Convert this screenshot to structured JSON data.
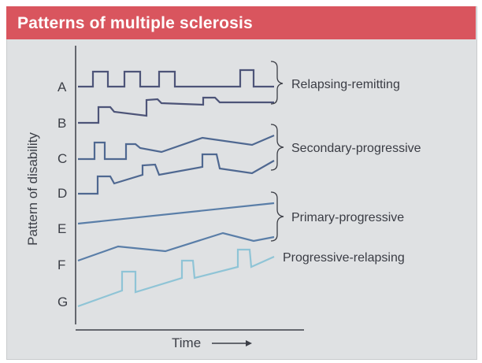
{
  "header": {
    "title": "Patterns of multiple sclerosis"
  },
  "axes": {
    "y_label": "Pattern of disability",
    "x_label": "Time"
  },
  "rows": [
    {
      "label": "A",
      "color": "#4d5478"
    },
    {
      "label": "B",
      "color": "#4d5478"
    },
    {
      "label": "C",
      "color": "#4f6891"
    },
    {
      "label": "D",
      "color": "#4f6891"
    },
    {
      "label": "E",
      "color": "#5a7ea8"
    },
    {
      "label": "F",
      "color": "#5a7ea8"
    },
    {
      "label": "G",
      "color": "#8fc4d6"
    }
  ],
  "groups": [
    {
      "label": "Relapsing-remitting",
      "rows": [
        "A",
        "B"
      ]
    },
    {
      "label": "Secondary-progressive",
      "rows": [
        "C",
        "D"
      ]
    },
    {
      "label": "Primary-progressive",
      "rows": [
        "E",
        "F"
      ]
    },
    {
      "label": "Progressive-relapsing",
      "rows": [
        "G"
      ]
    }
  ],
  "colors": {
    "header": "#d9555e",
    "panel": "#dfe1e3",
    "axis": "#3c3f47"
  }
}
